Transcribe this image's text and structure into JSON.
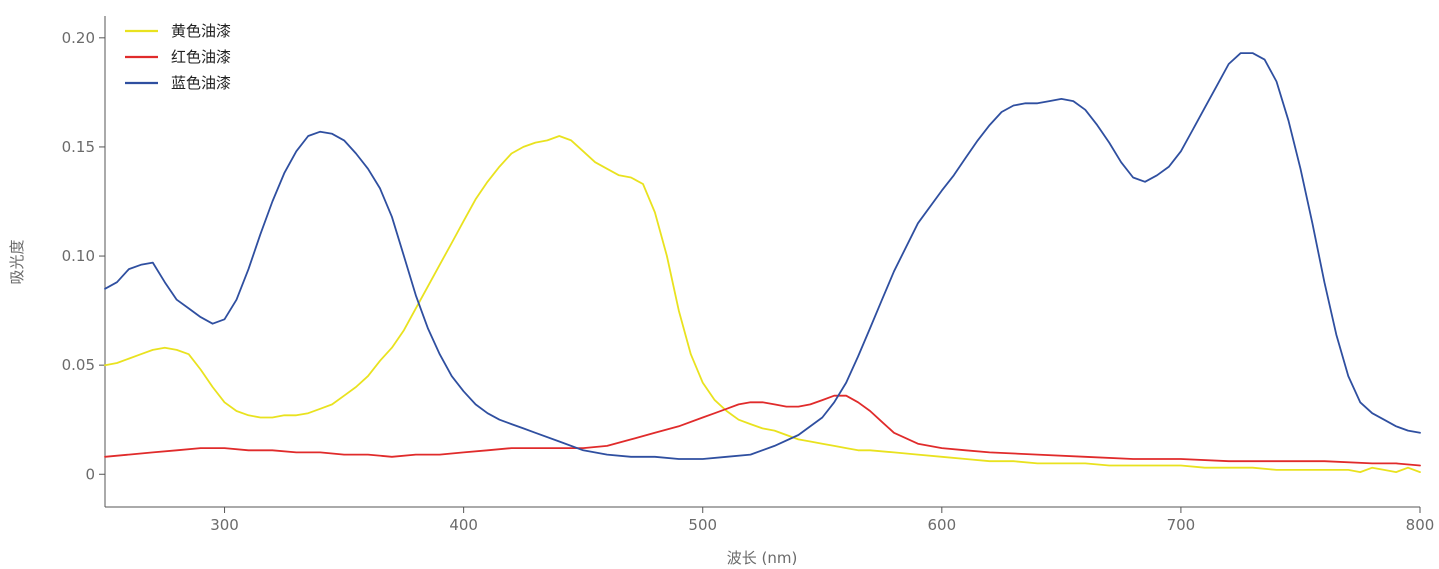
{
  "chart_data": {
    "type": "line",
    "title": "",
    "xlabel": "波长 (nm)",
    "ylabel": "吸光度",
    "xlim": [
      250,
      800
    ],
    "ylim": [
      -0.015,
      0.21
    ],
    "xticks": [
      300,
      400,
      500,
      600,
      700,
      800
    ],
    "xtick_labels": [
      "300",
      "400",
      "500",
      "600",
      "700",
      "800"
    ],
    "yticks": [
      0,
      0.05,
      0.1,
      0.15,
      0.2
    ],
    "ytick_labels": [
      "0",
      "0.05",
      "0.10",
      "0.15",
      "0.20"
    ],
    "grid": false,
    "legend_position": "top-left",
    "series": [
      {
        "name": "黄色油漆",
        "color": "#e9e21f",
        "x": [
          250,
          255,
          260,
          265,
          270,
          275,
          280,
          285,
          290,
          295,
          300,
          305,
          310,
          315,
          320,
          325,
          330,
          335,
          340,
          345,
          350,
          355,
          360,
          365,
          370,
          375,
          380,
          385,
          390,
          395,
          400,
          405,
          410,
          415,
          420,
          425,
          430,
          435,
          440,
          445,
          450,
          455,
          460,
          465,
          470,
          475,
          480,
          485,
          490,
          495,
          500,
          505,
          510,
          515,
          520,
          525,
          530,
          535,
          540,
          545,
          550,
          555,
          560,
          565,
          570,
          580,
          590,
          600,
          610,
          620,
          630,
          640,
          650,
          660,
          670,
          680,
          690,
          700,
          710,
          720,
          730,
          740,
          750,
          760,
          770,
          775,
          780,
          785,
          790,
          795,
          800
        ],
        "y": [
          0.05,
          0.051,
          0.053,
          0.055,
          0.057,
          0.058,
          0.057,
          0.055,
          0.048,
          0.04,
          0.033,
          0.029,
          0.027,
          0.026,
          0.026,
          0.027,
          0.027,
          0.028,
          0.03,
          0.032,
          0.036,
          0.04,
          0.045,
          0.052,
          0.058,
          0.066,
          0.076,
          0.086,
          0.096,
          0.106,
          0.116,
          0.126,
          0.134,
          0.141,
          0.147,
          0.15,
          0.152,
          0.153,
          0.155,
          0.153,
          0.148,
          0.143,
          0.14,
          0.137,
          0.136,
          0.133,
          0.12,
          0.1,
          0.075,
          0.055,
          0.042,
          0.034,
          0.029,
          0.025,
          0.023,
          0.021,
          0.02,
          0.018,
          0.016,
          0.015,
          0.014,
          0.013,
          0.012,
          0.011,
          0.011,
          0.01,
          0.009,
          0.008,
          0.007,
          0.006,
          0.006,
          0.005,
          0.005,
          0.005,
          0.004,
          0.004,
          0.004,
          0.004,
          0.003,
          0.003,
          0.003,
          0.002,
          0.002,
          0.002,
          0.002,
          0.001,
          0.003,
          0.002,
          0.001,
          0.003,
          0.001
        ]
      },
      {
        "name": "红色油漆",
        "color": "#e02b2b",
        "x": [
          250,
          260,
          270,
          280,
          290,
          300,
          310,
          320,
          330,
          340,
          350,
          360,
          370,
          380,
          390,
          400,
          410,
          420,
          430,
          440,
          450,
          460,
          470,
          480,
          490,
          500,
          505,
          510,
          515,
          520,
          525,
          530,
          535,
          540,
          545,
          550,
          555,
          560,
          565,
          570,
          575,
          580,
          590,
          600,
          610,
          620,
          640,
          660,
          680,
          700,
          720,
          740,
          760,
          780,
          790,
          800
        ],
        "y": [
          0.008,
          0.009,
          0.01,
          0.011,
          0.012,
          0.012,
          0.011,
          0.011,
          0.01,
          0.01,
          0.009,
          0.009,
          0.008,
          0.009,
          0.009,
          0.01,
          0.011,
          0.012,
          0.012,
          0.012,
          0.012,
          0.013,
          0.016,
          0.019,
          0.022,
          0.026,
          0.028,
          0.03,
          0.032,
          0.033,
          0.033,
          0.032,
          0.031,
          0.031,
          0.032,
          0.034,
          0.036,
          0.036,
          0.033,
          0.029,
          0.024,
          0.019,
          0.014,
          0.012,
          0.011,
          0.01,
          0.009,
          0.008,
          0.007,
          0.007,
          0.006,
          0.006,
          0.006,
          0.005,
          0.005,
          0.004
        ]
      },
      {
        "name": "蓝色油漆",
        "color": "#2f4fa0",
        "x": [
          250,
          255,
          260,
          265,
          270,
          275,
          280,
          285,
          290,
          295,
          300,
          305,
          310,
          315,
          320,
          325,
          330,
          335,
          340,
          345,
          350,
          355,
          360,
          365,
          370,
          375,
          380,
          385,
          390,
          395,
          400,
          405,
          410,
          415,
          420,
          425,
          430,
          440,
          450,
          460,
          470,
          480,
          490,
          500,
          510,
          520,
          530,
          540,
          550,
          555,
          560,
          565,
          570,
          575,
          580,
          590,
          600,
          605,
          610,
          615,
          620,
          625,
          630,
          635,
          640,
          645,
          650,
          655,
          660,
          665,
          670,
          675,
          680,
          685,
          690,
          695,
          700,
          705,
          710,
          715,
          720,
          725,
          730,
          735,
          740,
          745,
          750,
          755,
          760,
          765,
          770,
          775,
          780,
          785,
          790,
          795,
          800
        ],
        "y": [
          0.085,
          0.088,
          0.094,
          0.096,
          0.097,
          0.088,
          0.08,
          0.076,
          0.072,
          0.069,
          0.071,
          0.08,
          0.094,
          0.11,
          0.125,
          0.138,
          0.148,
          0.155,
          0.157,
          0.156,
          0.153,
          0.147,
          0.14,
          0.131,
          0.118,
          0.1,
          0.082,
          0.067,
          0.055,
          0.045,
          0.038,
          0.032,
          0.028,
          0.025,
          0.023,
          0.021,
          0.019,
          0.015,
          0.011,
          0.009,
          0.008,
          0.008,
          0.007,
          0.007,
          0.008,
          0.009,
          0.013,
          0.018,
          0.026,
          0.033,
          0.042,
          0.054,
          0.067,
          0.08,
          0.093,
          0.115,
          0.13,
          0.137,
          0.145,
          0.153,
          0.16,
          0.166,
          0.169,
          0.17,
          0.17,
          0.171,
          0.172,
          0.171,
          0.167,
          0.16,
          0.152,
          0.143,
          0.136,
          0.134,
          0.137,
          0.141,
          0.148,
          0.158,
          0.168,
          0.178,
          0.188,
          0.193,
          0.193,
          0.19,
          0.18,
          0.162,
          0.14,
          0.115,
          0.088,
          0.064,
          0.045,
          0.033,
          0.028,
          0.025,
          0.022,
          0.02,
          0.019
        ]
      }
    ]
  }
}
